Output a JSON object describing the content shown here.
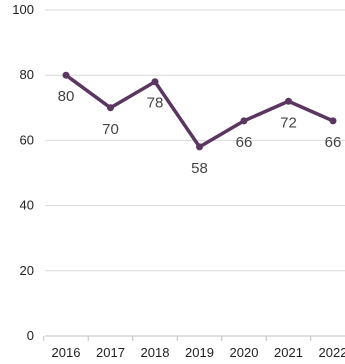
{
  "chart_data": {
    "type": "line",
    "title": "",
    "xlabel": "",
    "ylabel": "",
    "categories": [
      "2016",
      "2017",
      "2018",
      "2019",
      "2020",
      "2021",
      "2022"
    ],
    "series": [
      {
        "values": [
          80,
          70,
          78,
          58,
          66,
          72,
          66
        ]
      }
    ],
    "data_labels": [
      "80",
      "70",
      "78",
      "58",
      "66",
      "72",
      "66"
    ],
    "ylim": [
      0,
      100
    ],
    "yticks": [
      0,
      20,
      40,
      60,
      80,
      100
    ],
    "ytick_labels": [
      "0",
      "20",
      "40",
      "60",
      "80",
      "100"
    ],
    "grid": "horizontal",
    "legend": "none",
    "colors": {
      "line": "#5a3660",
      "grid": "#d9d9d9",
      "axis": "#bfbfbf",
      "text": "#222222",
      "data_label": "#444444"
    }
  }
}
